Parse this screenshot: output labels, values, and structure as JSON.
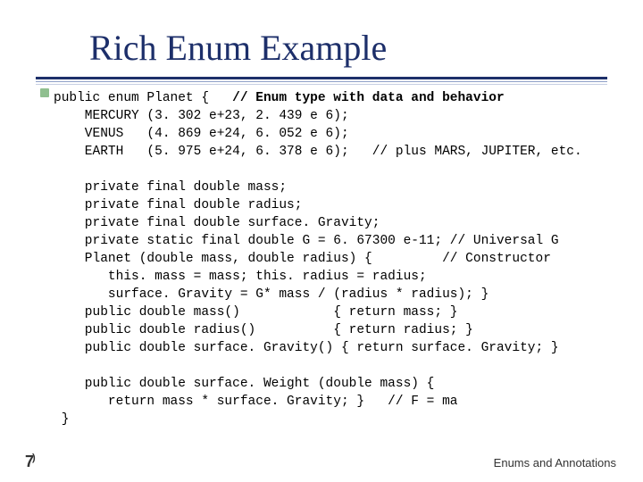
{
  "title": "Rich Enum Example",
  "title_color": "#1d2f6a",
  "title_fontsize": 40,
  "underline_colors": [
    "#1d2f6a",
    "#8fa0c8",
    "#c6cee3"
  ],
  "bullet_color": "#8fbf8f",
  "code_fontsize": 14.5,
  "code_color": "#000000",
  "lines": [
    {
      "indent": 0,
      "segs": [
        {
          "t": "public enum Planet {   "
        },
        {
          "t": "// Enum type with data and behavior",
          "b": true
        }
      ]
    },
    {
      "indent": 0,
      "segs": [
        {
          "t": "    MERCURY (3. 302 e+23, 2. 439 e 6);"
        }
      ]
    },
    {
      "indent": 0,
      "segs": [
        {
          "t": "    VENUS   (4. 869 e+24, 6. 052 e 6);"
        }
      ]
    },
    {
      "indent": 0,
      "segs": [
        {
          "t": "    EARTH   (5. 975 e+24, 6. 378 e 6);   // plus MARS, JUPITER, etc."
        }
      ]
    },
    {
      "indent": 0,
      "segs": [
        {
          "t": " "
        }
      ]
    },
    {
      "indent": 0,
      "segs": [
        {
          "t": "    private final double mass;"
        }
      ]
    },
    {
      "indent": 0,
      "segs": [
        {
          "t": "    private final double radius;"
        }
      ]
    },
    {
      "indent": 0,
      "segs": [
        {
          "t": "    private final double surface. Gravity;"
        }
      ]
    },
    {
      "indent": 0,
      "segs": [
        {
          "t": "    private static final double G = 6. 67300 e-11; // Universal G"
        }
      ]
    },
    {
      "indent": 0,
      "segs": [
        {
          "t": "    Planet (double mass, double radius) {         // Constructor"
        }
      ]
    },
    {
      "indent": 0,
      "segs": [
        {
          "t": "       this. mass = mass; this. radius = radius;"
        }
      ]
    },
    {
      "indent": 0,
      "segs": [
        {
          "t": "       surface. Gravity = G* mass / (radius * radius); }"
        }
      ]
    },
    {
      "indent": 0,
      "segs": [
        {
          "t": "    public double mass()            { return mass; }"
        }
      ]
    },
    {
      "indent": 0,
      "segs": [
        {
          "t": "    public double radius()          { return radius; }"
        }
      ]
    },
    {
      "indent": 0,
      "segs": [
        {
          "t": "    public double surface. Gravity() { return surface. Gravity; }"
        }
      ]
    },
    {
      "indent": 0,
      "segs": [
        {
          "t": " "
        }
      ]
    },
    {
      "indent": 0,
      "segs": [
        {
          "t": "    public double surface. Weight (double mass) {"
        }
      ]
    },
    {
      "indent": 0,
      "segs": [
        {
          "t": "       return mass * surface. Gravity; }   // F = ma"
        }
      ]
    },
    {
      "indent": 0,
      "segs": [
        {
          "t": " }"
        }
      ]
    }
  ],
  "page_number": "7",
  "page_paren": ")",
  "footer": "Enums and Annotations"
}
